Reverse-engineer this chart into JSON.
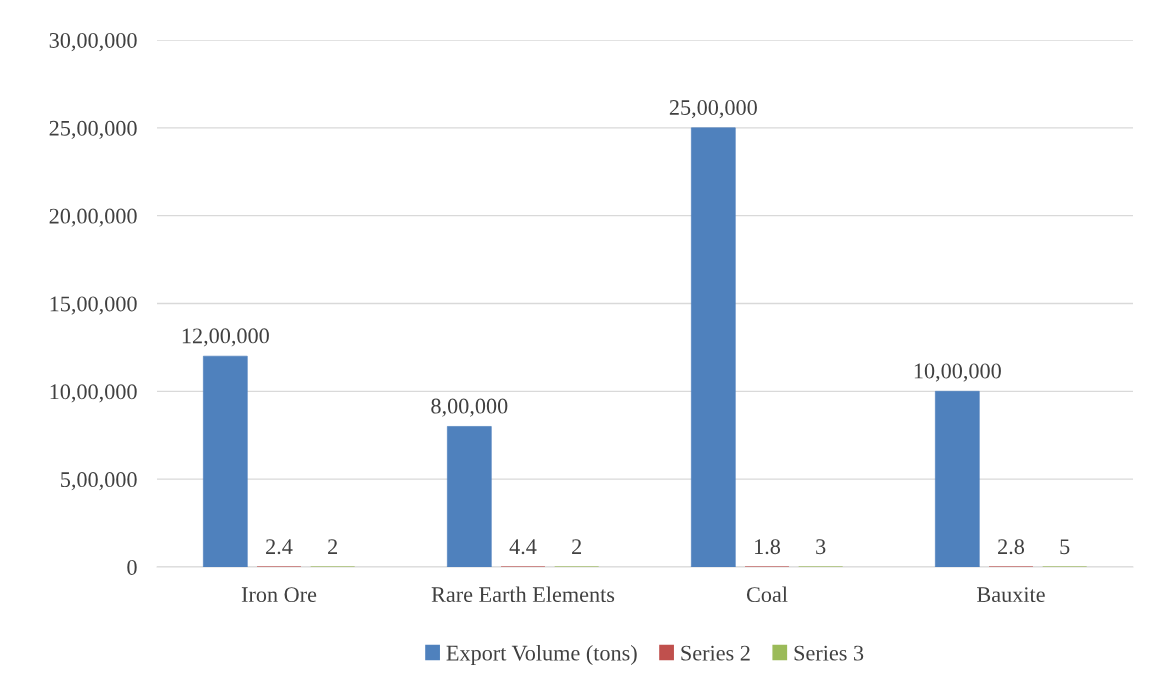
{
  "chart_data": {
    "type": "bar",
    "categories": [
      "Iron Ore",
      "Rare Earth Elements",
      "Coal",
      "Bauxite"
    ],
    "series": [
      {
        "name": "Export Volume (tons)",
        "color": "#4f81bd",
        "values": [
          1200000,
          800000,
          2500000,
          1000000
        ],
        "value_labels": [
          "12,00,000",
          "8,00,000",
          "25,00,000",
          "10,00,000"
        ]
      },
      {
        "name": "Series 2",
        "color": "#c0504d",
        "values": [
          2.4,
          4.4,
          1.8,
          2.8
        ],
        "value_labels": [
          "2.4",
          "4.4",
          "1.8",
          "2.8"
        ]
      },
      {
        "name": "Series 3",
        "color": "#9bbb59",
        "values": [
          2,
          2,
          3,
          5
        ],
        "value_labels": [
          "2",
          "2",
          "3",
          "5"
        ]
      }
    ],
    "ylim": [
      0,
      3000000
    ],
    "yticks": [
      0,
      {
        "value": 500000,
        "label": "5,00,000"
      },
      {
        "value": 1000000,
        "label": "10,00,000"
      },
      {
        "value": 1500000,
        "label": "15,00,000"
      },
      {
        "value": 2000000,
        "label": "20,00,000"
      },
      {
        "value": 2500000,
        "label": "25,00,000"
      },
      {
        "value": 3000000,
        "label": "30,00,000"
      }
    ],
    "grid": "y",
    "legend": "bottom"
  }
}
